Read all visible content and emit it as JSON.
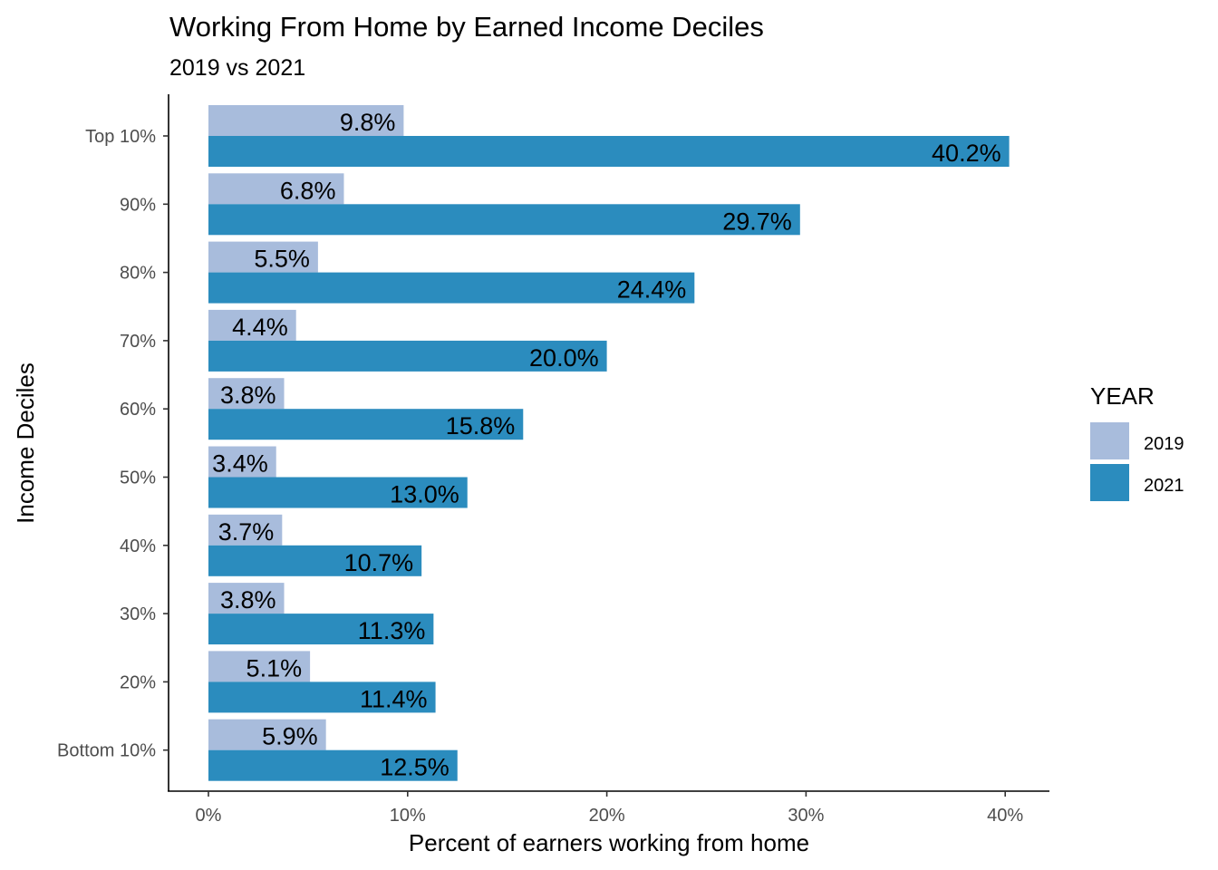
{
  "chart_data": {
    "type": "bar",
    "orientation": "horizontal",
    "title": "Working From Home by Earned Income Deciles",
    "subtitle": "2019 vs 2021",
    "xlabel": "Percent of earners working from home",
    "ylabel": "Income Deciles",
    "xlim": [
      0,
      42
    ],
    "xticks": [
      "0%",
      "10%",
      "20%",
      "30%",
      "40%"
    ],
    "categories": [
      "Top 10%",
      "90%",
      "80%",
      "70%",
      "60%",
      "50%",
      "40%",
      "30%",
      "20%",
      "Bottom 10%"
    ],
    "series": [
      {
        "name": "2019",
        "color": "#a8bcdc",
        "values": [
          9.8,
          6.8,
          5.5,
          4.4,
          3.8,
          3.4,
          3.7,
          3.8,
          5.1,
          5.9
        ],
        "labels": [
          "9.8%",
          "6.8%",
          "5.5%",
          "4.4%",
          "3.8%",
          "3.4%",
          "3.7%",
          "3.8%",
          "5.1%",
          "5.9%"
        ]
      },
      {
        "name": "2021",
        "color": "#2b8cbe",
        "values": [
          40.2,
          29.7,
          24.4,
          20.0,
          15.8,
          13.0,
          10.7,
          11.3,
          11.4,
          12.5
        ],
        "labels": [
          "40.2%",
          "29.7%",
          "24.4%",
          "20.0%",
          "15.8%",
          "13.0%",
          "10.7%",
          "11.3%",
          "11.4%",
          "12.5%"
        ]
      }
    ],
    "legend": {
      "title": "YEAR",
      "position": "right"
    },
    "grid": false
  }
}
